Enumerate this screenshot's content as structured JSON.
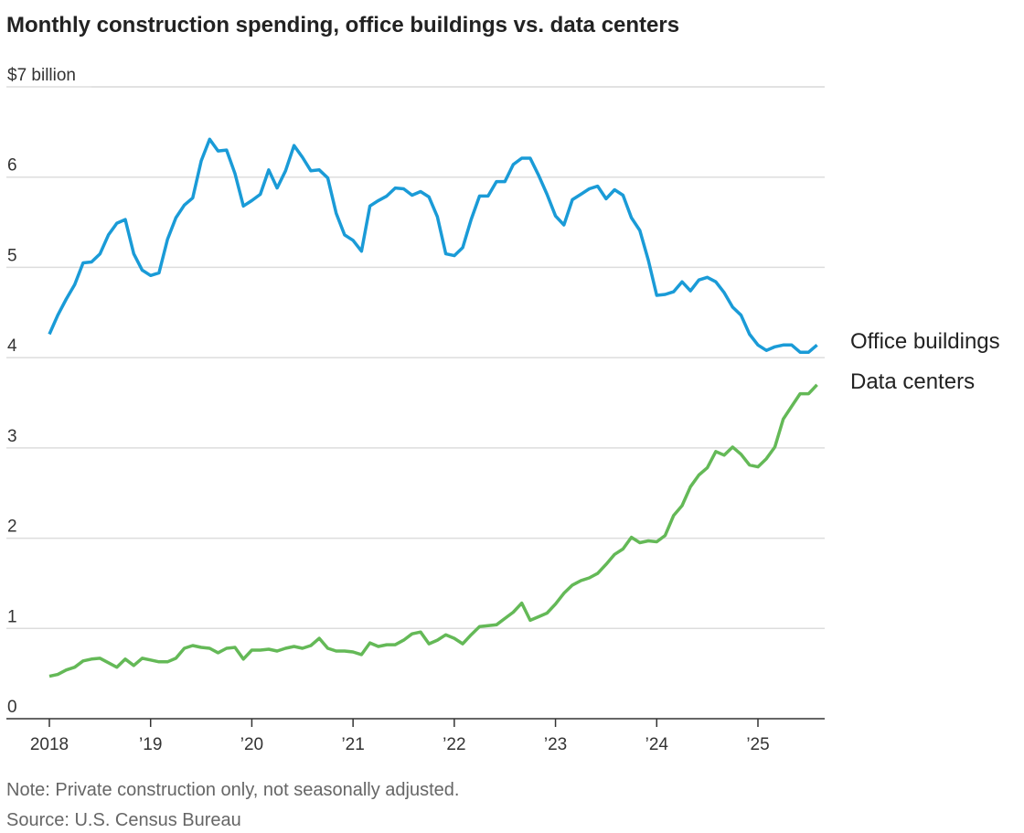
{
  "chart_data": {
    "type": "line",
    "title": "Monthly construction spending, office buildings vs. data centers",
    "note": "Note: Private construction only, not seasonally adjusted.",
    "source": "Source: U.S. Census Bureau",
    "categories": [
      "2018",
      null,
      null,
      null,
      null,
      null,
      null,
      null,
      null,
      null,
      null,
      null,
      "’19",
      null,
      null,
      null,
      null,
      null,
      null,
      null,
      null,
      null,
      null,
      null,
      "’20",
      null,
      null,
      null,
      null,
      null,
      null,
      null,
      null,
      null,
      null,
      null,
      "’21",
      null,
      null,
      null,
      null,
      null,
      null,
      null,
      null,
      null,
      null,
      null,
      "’22",
      null,
      null,
      null,
      null,
      null,
      null,
      null,
      null,
      null,
      null,
      null,
      "’23",
      null,
      null,
      null,
      null,
      null,
      null,
      null,
      null,
      null,
      null,
      null,
      "’24",
      null,
      null,
      null,
      null,
      null,
      null,
      null,
      null,
      null,
      null,
      null,
      "’25",
      null,
      null,
      null,
      null,
      null,
      null,
      null
    ],
    "ylim": [
      0,
      7
    ],
    "yticks": [
      0,
      1,
      2,
      3,
      4,
      5,
      6,
      {
        "value": 7,
        "label": "$7 billion"
      }
    ],
    "grid": true,
    "series": [
      {
        "name": "Office buildings",
        "color": "#1a9bd7",
        "values": [
          4.26,
          4.47,
          4.65,
          4.81,
          5.05,
          5.06,
          5.15,
          5.36,
          5.49,
          5.53,
          5.15,
          4.97,
          4.91,
          4.94,
          5.31,
          5.55,
          5.69,
          5.77,
          6.18,
          6.42,
          6.29,
          6.3,
          6.04,
          5.68,
          5.74,
          5.81,
          6.08,
          5.88,
          6.07,
          6.35,
          6.22,
          6.07,
          6.08,
          5.99,
          5.6,
          5.36,
          5.3,
          5.18,
          5.68,
          5.74,
          5.79,
          5.88,
          5.87,
          5.8,
          5.84,
          5.78,
          5.56,
          5.15,
          5.13,
          5.22,
          5.53,
          5.79,
          5.79,
          5.95,
          5.95,
          6.14,
          6.21,
          6.21,
          6.02,
          5.81,
          5.57,
          5.47,
          5.75,
          5.81,
          5.87,
          5.9,
          5.76,
          5.86,
          5.8,
          5.55,
          5.41,
          5.08,
          4.69,
          4.7,
          4.73,
          4.84,
          4.74,
          4.86,
          4.89,
          4.84,
          4.72,
          4.56,
          4.47,
          4.26,
          4.14,
          4.08,
          4.12,
          4.14,
          4.14,
          4.06,
          4.06,
          4.14
        ]
      },
      {
        "name": "Data centers",
        "color": "#64b957",
        "values": [
          0.47,
          0.49,
          0.54,
          0.57,
          0.64,
          0.66,
          0.67,
          0.62,
          0.57,
          0.66,
          0.59,
          0.67,
          0.65,
          0.63,
          0.63,
          0.67,
          0.78,
          0.81,
          0.79,
          0.78,
          0.73,
          0.78,
          0.79,
          0.66,
          0.76,
          0.76,
          0.77,
          0.75,
          0.78,
          0.8,
          0.78,
          0.81,
          0.89,
          0.78,
          0.75,
          0.75,
          0.74,
          0.71,
          0.84,
          0.8,
          0.82,
          0.82,
          0.87,
          0.94,
          0.96,
          0.83,
          0.87,
          0.93,
          0.89,
          0.83,
          0.93,
          1.02,
          1.03,
          1.04,
          1.11,
          1.18,
          1.28,
          1.09,
          1.13,
          1.17,
          1.27,
          1.39,
          1.48,
          1.53,
          1.56,
          1.61,
          1.71,
          1.82,
          1.88,
          2.01,
          1.95,
          1.97,
          1.96,
          2.03,
          2.25,
          2.36,
          2.57,
          2.7,
          2.78,
          2.96,
          2.92,
          3.01,
          2.93,
          2.81,
          2.79,
          2.88,
          3.01,
          3.32,
          3.46,
          3.6,
          3.6,
          3.7
        ]
      }
    ]
  }
}
